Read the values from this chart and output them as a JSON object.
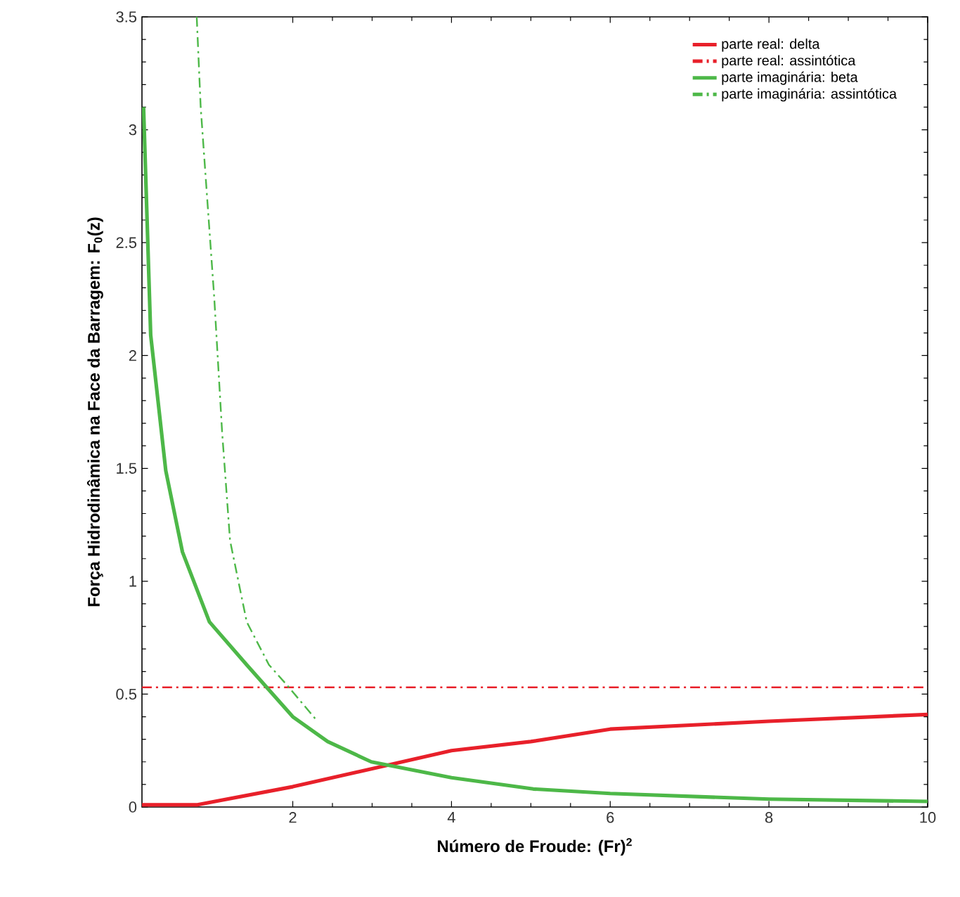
{
  "chart_data": {
    "type": "line",
    "xlabel": "Número de Froude: (Fr)$^{2}$",
    "ylabel": "Força Hidrodinâmica na Face da Barragem: F$_{0}$(z)",
    "xlim": [
      0.1,
      10
    ],
    "ylim": [
      0,
      3.5
    ],
    "xticks": [
      2,
      4,
      6,
      8,
      10
    ],
    "yticks": [
      0,
      0.5,
      1,
      1.5,
      2,
      2.5,
      3,
      3.5
    ],
    "grid": false,
    "legend": "top right",
    "marker": "none",
    "series": [
      {
        "name": "parte real: delta",
        "color": "#e8202a",
        "line_style": "solid",
        "x": [
          0.1,
          0.8,
          2,
          3,
          4,
          5,
          6,
          8,
          10
        ],
        "values": [
          0.01,
          0.01,
          0.09,
          0.17,
          0.25,
          0.29,
          0.345,
          0.38,
          0.41
        ]
      },
      {
        "name": "parte real: assintótica",
        "color": "#e8202a",
        "line_style": "dashdot",
        "x": [
          0.1,
          10
        ],
        "values": [
          0.53,
          0.53
        ]
      },
      {
        "name": "parte imaginária: beta",
        "color": "#4db848",
        "line_style": "solid",
        "x": [
          0.12,
          0.21,
          0.4,
          0.61,
          0.95,
          1.42,
          2.0,
          2.44,
          2.99,
          4.0,
          5.03,
          6,
          8,
          10
        ],
        "values": [
          3.1,
          2.09,
          1.49,
          1.13,
          0.82,
          0.63,
          0.4,
          0.29,
          0.2,
          0.13,
          0.08,
          0.06,
          0.035,
          0.025
        ]
      },
      {
        "name": "parte imaginária: assintótica",
        "color": "#4db848",
        "line_style": "dashdot",
        "x": [
          0.79,
          0.84,
          1.01,
          1.11,
          1.21,
          1.42,
          1.7,
          1.94,
          2.31
        ],
        "values": [
          3.5,
          3.1,
          2.26,
          1.66,
          1.18,
          0.82,
          0.63,
          0.535,
          0.38
        ]
      }
    ]
  }
}
